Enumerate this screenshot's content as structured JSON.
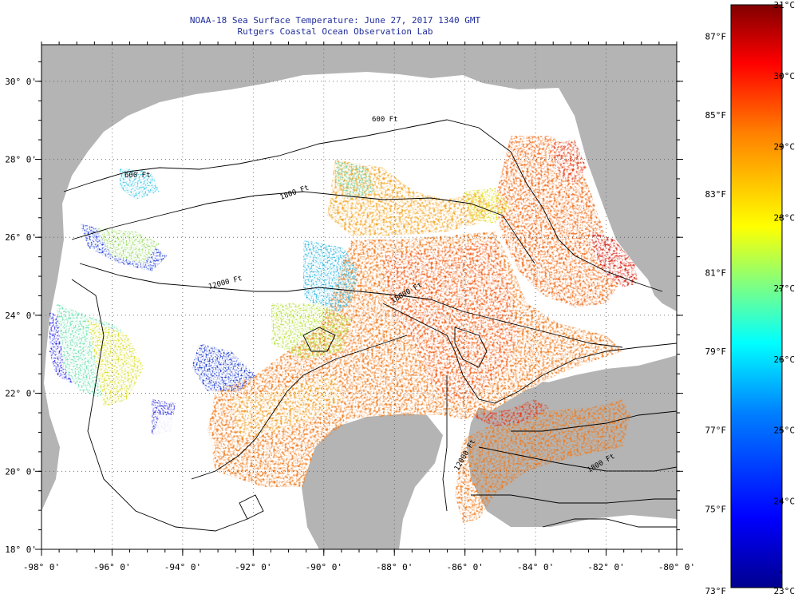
{
  "title": "NOAA-18 Sea Surface Temperature:  June 27, 2017 1340 GMT",
  "subtitle": "Rutgers Coastal Ocean Observation Lab",
  "map": {
    "lon_range": [
      -98,
      -80
    ],
    "lat_range": [
      18,
      31
    ],
    "lon_ticks": [
      "-98° 0'",
      "-96° 0'",
      "-94° 0'",
      "-92° 0'",
      "-90° 0'",
      "-88° 0'",
      "-86° 0'",
      "-84° 0'",
      "-82° 0'",
      "-80° 0'"
    ],
    "lat_ticks": [
      "30° 0'",
      "28° 0'",
      "26° 0'",
      "24° 0'",
      "22° 0'",
      "20° 0'",
      "18° 0'"
    ],
    "contour_labels": [
      "600 Ft",
      "600 Ft",
      "1800 Ft",
      "12000 Ft",
      "18000 Ft",
      "12000 Ft",
      "1800 Ft"
    ],
    "colors": {
      "land": "#b4b4b4",
      "cloud": "#ffffff",
      "contour": "#000000",
      "grid": "#555555"
    }
  },
  "colorbar": {
    "fahrenheit_labels": [
      "87°F",
      "85°F",
      "83°F",
      "81°F",
      "79°F",
      "77°F",
      "75°F",
      "73°F"
    ],
    "celsius_labels": [
      "31°C",
      "30°C",
      "29°C",
      "28°C",
      "27°C",
      "26°C",
      "25°C",
      "24°C",
      "23°C"
    ],
    "stops": [
      "#00008f",
      "#0000ff",
      "#0080ff",
      "#00ffff",
      "#80ff80",
      "#ffff00",
      "#ff8000",
      "#ff0000",
      "#800000"
    ]
  }
}
